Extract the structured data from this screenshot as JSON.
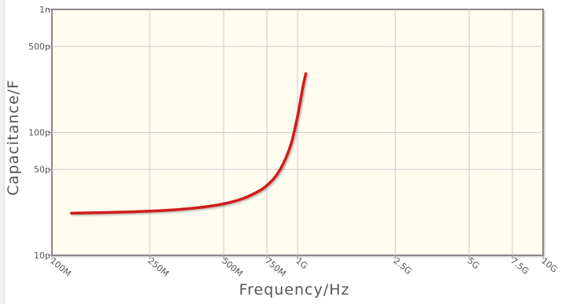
{
  "chart_data": {
    "type": "line",
    "xlabel": "Frequency/Hz",
    "ylabel": "Capacitance/F",
    "x_scale": "log",
    "y_scale": "log",
    "xlim": [
      100000000,
      10000000000
    ],
    "ylim": [
      1e-11,
      1e-09
    ],
    "grid": true,
    "x_ticks": [
      {
        "value": 100000000,
        "label": "100M"
      },
      {
        "value": 250000000,
        "label": "250M"
      },
      {
        "value": 500000000,
        "label": "500M"
      },
      {
        "value": 750000000,
        "label": "750M"
      },
      {
        "value": 1000000000,
        "label": "1G"
      },
      {
        "value": 2500000000,
        "label": "2.5G"
      },
      {
        "value": 5000000000,
        "label": "5G"
      },
      {
        "value": 7500000000,
        "label": "7.5G"
      },
      {
        "value": 10000000000,
        "label": "10G"
      }
    ],
    "y_ticks": [
      {
        "value": 1e-09,
        "label": "1n"
      },
      {
        "value": 5e-10,
        "label": "500p"
      },
      {
        "value": 1e-10,
        "label": "100p"
      },
      {
        "value": 5e-11,
        "label": "50p"
      },
      {
        "value": 1e-11,
        "label": "10p"
      }
    ],
    "series": [
      {
        "color": "#d01c1c",
        "x": [
          120000000,
          200000000,
          300000000,
          400000000,
          500000000,
          600000000,
          700000000,
          750000000,
          800000000,
          850000000,
          900000000,
          950000000,
          1000000000,
          1050000000,
          1080000000
        ],
        "y": [
          2.2e-11,
          2.25e-11,
          2.33e-11,
          2.45e-11,
          2.62e-11,
          2.9e-11,
          3.35e-11,
          3.7e-11,
          4.2e-11,
          5e-11,
          6.3e-11,
          8.6e-11,
          1.35e-10,
          2.3e-10,
          3e-10
        ]
      }
    ]
  }
}
